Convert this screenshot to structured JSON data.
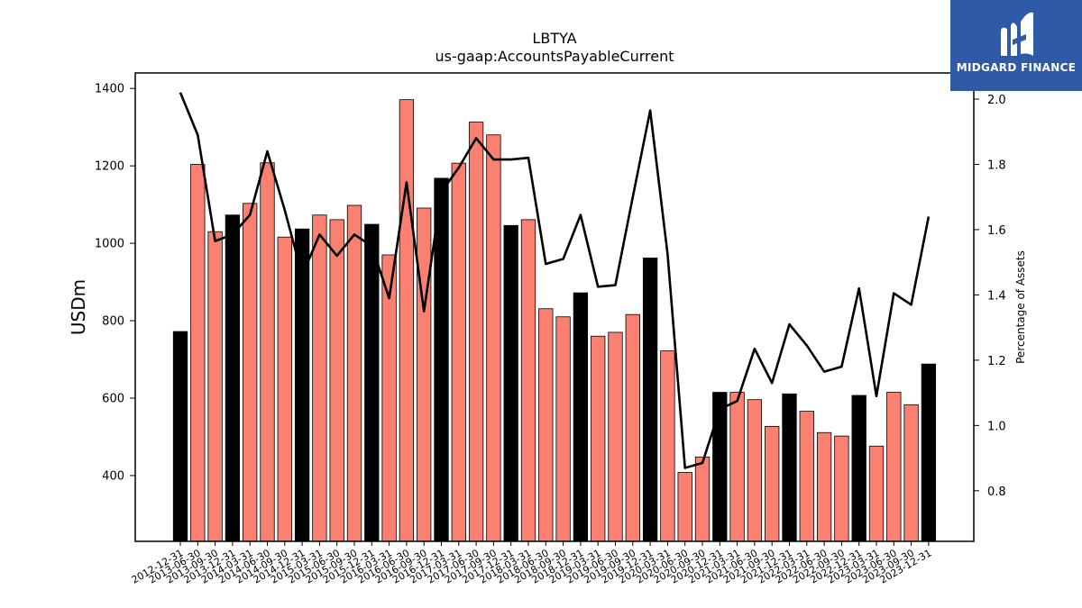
{
  "chart_data": {
    "type": "bar",
    "title": "LBTYA",
    "subtitle": "us-gaap:AccountsPayableCurrent",
    "ylabel": "USDm",
    "y2label": "Percentage of Assets",
    "ylim": [
      230,
      1440
    ],
    "y2lim": [
      0.645,
      2.08
    ],
    "yticks": [
      400,
      600,
      800,
      1000,
      1200,
      1400
    ],
    "y2ticks": [
      0.8,
      1.0,
      1.2,
      1.4,
      1.6,
      1.8,
      2.0
    ],
    "y2tick_labels": [
      "0.8",
      "1.0",
      "1.2",
      "1.4",
      "1.6",
      "1.8",
      "2.0"
    ],
    "grid": false,
    "categories": [
      "2012-12-31",
      "2013-06-30",
      "2013-09-30",
      "2013-12-31",
      "2014-03-31",
      "2014-06-30",
      "2014-09-30",
      "2014-12-31",
      "2015-03-31",
      "2015-06-30",
      "2015-09-30",
      "2015-12-31",
      "2016-03-31",
      "2016-06-30",
      "2016-09-30",
      "2016-12-31",
      "2017-03-31",
      "2017-06-30",
      "2017-09-30",
      "2017-12-31",
      "2018-03-31",
      "2018-06-30",
      "2018-09-30",
      "2018-12-31",
      "2019-03-31",
      "2019-06-30",
      "2019-09-30",
      "2019-12-31",
      "2020-03-31",
      "2020-06-30",
      "2020-09-30",
      "2020-12-31",
      "2021-03-31",
      "2021-06-30",
      "2021-09-30",
      "2021-12-31",
      "2022-03-31",
      "2022-06-30",
      "2022-09-30",
      "2022-12-31",
      "2023-03-31",
      "2023-06-30",
      "2023-09-30",
      "2023-12-31"
    ],
    "series": [
      {
        "kind": "bar",
        "values": [
          772,
          1204,
          1030,
          1073,
          1103,
          1208,
          1016,
          1037,
          1073,
          1061,
          1098,
          1049,
          970,
          1371,
          1091,
          1168,
          1207,
          1313,
          1280,
          1046,
          1061,
          831,
          810,
          872,
          760,
          770,
          816,
          962,
          722,
          408,
          448,
          615,
          615,
          596,
          527,
          611,
          566,
          511,
          502,
          607,
          476,
          615,
          583,
          688
        ],
        "bar_colors": [
          "#000000",
          "#fa8072",
          "#fa8072",
          "#000000",
          "#fa8072",
          "#fa8072",
          "#fa8072",
          "#000000",
          "#fa8072",
          "#fa8072",
          "#fa8072",
          "#000000",
          "#fa8072",
          "#fa8072",
          "#fa8072",
          "#000000",
          "#fa8072",
          "#fa8072",
          "#fa8072",
          "#000000",
          "#fa8072",
          "#fa8072",
          "#fa8072",
          "#000000",
          "#fa8072",
          "#fa8072",
          "#fa8072",
          "#000000",
          "#fa8072",
          "#fa8072",
          "#fa8072",
          "#000000",
          "#fa8072",
          "#fa8072",
          "#fa8072",
          "#000000",
          "#fa8072",
          "#fa8072",
          "#fa8072",
          "#000000",
          "#fa8072",
          "#fa8072",
          "#fa8072",
          "#000000"
        ]
      },
      {
        "kind": "line",
        "axis": "right",
        "color": "#000000",
        "values": [
          2.02,
          1.89,
          1.565,
          1.585,
          1.645,
          1.84,
          1.66,
          1.46,
          1.585,
          1.52,
          1.585,
          1.55,
          1.39,
          1.745,
          1.35,
          1.715,
          1.79,
          1.88,
          1.815,
          1.815,
          1.82,
          1.495,
          1.51,
          1.645,
          1.425,
          1.43,
          1.7,
          1.965,
          1.525,
          0.87,
          0.885,
          1.05,
          1.075,
          1.235,
          1.13,
          1.31,
          1.245,
          1.165,
          1.18,
          1.42,
          1.09,
          1.405,
          1.37,
          1.64
        ]
      }
    ]
  },
  "logo": {
    "text": "MIDGARD FINANCE",
    "bg_color": "#2e5aa8"
  }
}
